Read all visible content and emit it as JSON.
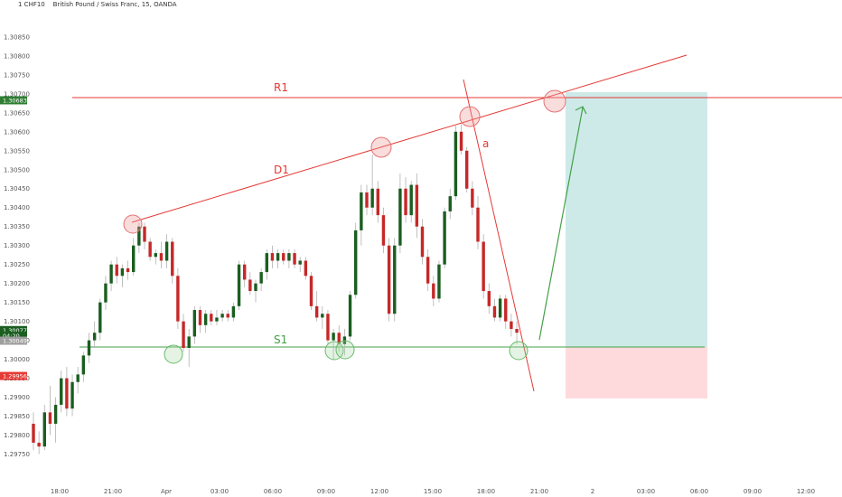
{
  "header": {
    "symbol": "1 CHF10",
    "subtitle": "British Pound / Swiss Franc, 15, OANDA"
  },
  "chart_data": {
    "type": "candlestick",
    "interval": "15",
    "ylim": [
      1.29725,
      1.30895
    ],
    "y_ticks": [
      "1.30850",
      "1.30800",
      "1.30750",
      "1.30700",
      "1.30650",
      "1.30600",
      "1.30550",
      "1.30500",
      "1.30450",
      "1.30400",
      "1.30350",
      "1.30300",
      "1.30250",
      "1.30200",
      "1.30150",
      "1.30100",
      "1.30050",
      "1.30000",
      "1.29950",
      "1.29900",
      "1.29850",
      "1.29800",
      "1.29750"
    ],
    "x_ticks": [
      "18:00",
      "21:00",
      "Apr",
      "03:00",
      "06:00",
      "09:00",
      "12:00",
      "15:00",
      "18:00",
      "21:00",
      "2",
      "03:00",
      "06:00",
      "09:00",
      "12:00"
    ],
    "price_tags": [
      {
        "label": "1.30683",
        "value": 1.30683,
        "color": "#2e7d32"
      },
      {
        "label": "1.30077",
        "value": 1.30077,
        "color": "#1b5e20"
      },
      {
        "label": "04:20",
        "value": 1.30062,
        "color": "#1b5e20"
      },
      {
        "label": "1.30049",
        "value": 1.30049,
        "color": "#9e9e9e"
      },
      {
        "label": "1.29956",
        "value": 1.29956,
        "color": "#e53935"
      }
    ],
    "candles": [
      [
        1.2983,
        1.2986,
        1.2976,
        1.2978
      ],
      [
        1.2978,
        1.2981,
        1.2975,
        1.2977
      ],
      [
        1.2977,
        1.2988,
        1.2976,
        1.2986
      ],
      [
        1.2986,
        1.2993,
        1.298,
        1.2983
      ],
      [
        1.2983,
        1.299,
        1.2978,
        1.2988
      ],
      [
        1.2988,
        1.2997,
        1.2986,
        1.2995
      ],
      [
        1.2995,
        1.2998,
        1.2985,
        1.2987
      ],
      [
        1.2987,
        1.2996,
        1.2985,
        1.2994
      ],
      [
        1.2994,
        1.2998,
        1.2991,
        1.2996
      ],
      [
        1.2996,
        1.3002,
        1.2994,
        1.3001
      ],
      [
        1.3001,
        1.3007,
        1.2999,
        1.3005
      ],
      [
        1.3005,
        1.301,
        1.3003,
        1.3007
      ],
      [
        1.3007,
        1.3016,
        1.3005,
        1.3015
      ],
      [
        1.3015,
        1.3022,
        1.3013,
        1.302
      ],
      [
        1.302,
        1.3026,
        1.3018,
        1.3025
      ],
      [
        1.3025,
        1.3027,
        1.302,
        1.3022
      ],
      [
        1.3022,
        1.3025,
        1.3019,
        1.3024
      ],
      [
        1.3024,
        1.3026,
        1.3021,
        1.3023
      ],
      [
        1.3023,
        1.3032,
        1.3022,
        1.303
      ],
      [
        1.303,
        1.3036,
        1.3028,
        1.3035
      ],
      [
        1.3035,
        1.3036,
        1.3029,
        1.3031
      ],
      [
        1.3031,
        1.3032,
        1.3026,
        1.3027
      ],
      [
        1.3027,
        1.3029,
        1.3025,
        1.3028
      ],
      [
        1.3028,
        1.3031,
        1.3024,
        1.3026
      ],
      [
        1.3026,
        1.3033,
        1.3024,
        1.3031
      ],
      [
        1.3031,
        1.3032,
        1.302,
        1.3022
      ],
      [
        1.3022,
        1.3024,
        1.3008,
        1.301
      ],
      [
        1.301,
        1.3012,
        1.3002,
        1.3003
      ],
      [
        1.3003,
        1.3008,
        1.2998,
        1.3006
      ],
      [
        1.3006,
        1.3014,
        1.3004,
        1.3013
      ],
      [
        1.3013,
        1.3014,
        1.3007,
        1.3009
      ],
      [
        1.3009,
        1.3013,
        1.3007,
        1.3012
      ],
      [
        1.3012,
        1.3013,
        1.3009,
        1.301
      ],
      [
        1.301,
        1.3013,
        1.3009,
        1.3011
      ],
      [
        1.3011,
        1.3013,
        1.301,
        1.3012
      ],
      [
        1.3012,
        1.3013,
        1.301,
        1.3011
      ],
      [
        1.3011,
        1.3015,
        1.301,
        1.3014
      ],
      [
        1.3014,
        1.3026,
        1.3013,
        1.3025
      ],
      [
        1.3025,
        1.3026,
        1.3019,
        1.3021
      ],
      [
        1.3021,
        1.3023,
        1.3017,
        1.3018
      ],
      [
        1.3018,
        1.3021,
        1.3015,
        1.302
      ],
      [
        1.302,
        1.3024,
        1.3018,
        1.3023
      ],
      [
        1.3023,
        1.3029,
        1.3021,
        1.3028
      ],
      [
        1.3028,
        1.303,
        1.3024,
        1.3026
      ],
      [
        1.3026,
        1.3029,
        1.3024,
        1.3028
      ],
      [
        1.3028,
        1.3029,
        1.3025,
        1.3026
      ],
      [
        1.3026,
        1.3029,
        1.3024,
        1.3028
      ],
      [
        1.3028,
        1.3029,
        1.3024,
        1.3025
      ],
      [
        1.3025,
        1.3027,
        1.3023,
        1.3026
      ],
      [
        1.3026,
        1.3027,
        1.3021,
        1.3022
      ],
      [
        1.3022,
        1.3023,
        1.3013,
        1.3014
      ],
      [
        1.3014,
        1.3018,
        1.301,
        1.3011
      ],
      [
        1.3011,
        1.3014,
        1.3008,
        1.3012
      ],
      [
        1.3012,
        1.3013,
        1.3004,
        1.3005
      ],
      [
        1.3005,
        1.3008,
        1.3,
        1.3007
      ],
      [
        1.3007,
        1.3009,
        1.3002,
        1.3004
      ],
      [
        1.3004,
        1.3008,
        1.3001,
        1.3006
      ],
      [
        1.3006,
        1.3018,
        1.3005,
        1.3017
      ],
      [
        1.3017,
        1.3036,
        1.3016,
        1.3034
      ],
      [
        1.3034,
        1.3046,
        1.303,
        1.3044
      ],
      [
        1.3044,
        1.3046,
        1.3038,
        1.304
      ],
      [
        1.304,
        1.3054,
        1.3038,
        1.3045
      ],
      [
        1.3045,
        1.3047,
        1.3036,
        1.3038
      ],
      [
        1.3038,
        1.304,
        1.3028,
        1.303
      ],
      [
        1.303,
        1.3032,
        1.301,
        1.3012
      ],
      [
        1.3012,
        1.3032,
        1.301,
        1.303
      ],
      [
        1.303,
        1.3049,
        1.3028,
        1.3045
      ],
      [
        1.3045,
        1.3048,
        1.3036,
        1.3038
      ],
      [
        1.3038,
        1.3047,
        1.3036,
        1.3046
      ],
      [
        1.3046,
        1.3049,
        1.3032,
        1.3035
      ],
      [
        1.3035,
        1.3037,
        1.3025,
        1.3027
      ],
      [
        1.3027,
        1.3029,
        1.3018,
        1.302
      ],
      [
        1.302,
        1.3022,
        1.3014,
        1.3016
      ],
      [
        1.3016,
        1.3026,
        1.3015,
        1.3025
      ],
      [
        1.3025,
        1.304,
        1.3024,
        1.3039
      ],
      [
        1.3039,
        1.3045,
        1.3037,
        1.3043
      ],
      [
        1.3043,
        1.3062,
        1.3042,
        1.306
      ],
      [
        1.306,
        1.3062,
        1.3054,
        1.3055
      ],
      [
        1.3055,
        1.3056,
        1.3044,
        1.3045
      ],
      [
        1.3045,
        1.3047,
        1.3038,
        1.304
      ],
      [
        1.304,
        1.3043,
        1.3029,
        1.3031
      ],
      [
        1.3031,
        1.3033,
        1.3016,
        1.3018
      ],
      [
        1.3018,
        1.302,
        1.3012,
        1.3014
      ],
      [
        1.3014,
        1.3016,
        1.301,
        1.3011
      ],
      [
        1.3011,
        1.3017,
        1.301,
        1.3016
      ],
      [
        1.3016,
        1.3017,
        1.3008,
        1.301
      ],
      [
        1.301,
        1.3012,
        1.3006,
        1.3008
      ],
      [
        1.3008,
        1.301,
        1.3004,
        1.3007
      ]
    ]
  },
  "annotations": {
    "r1_label": "R1",
    "d1_label": "D1",
    "s1_label": "S1",
    "a_label": "a",
    "colors": {
      "resistance": "#e53935",
      "support": "#43a047",
      "target_zone": "#b2dfdb",
      "stop_zone": "#ffcdd2",
      "bull": "#1b5e20",
      "bear": "#c62828"
    }
  }
}
